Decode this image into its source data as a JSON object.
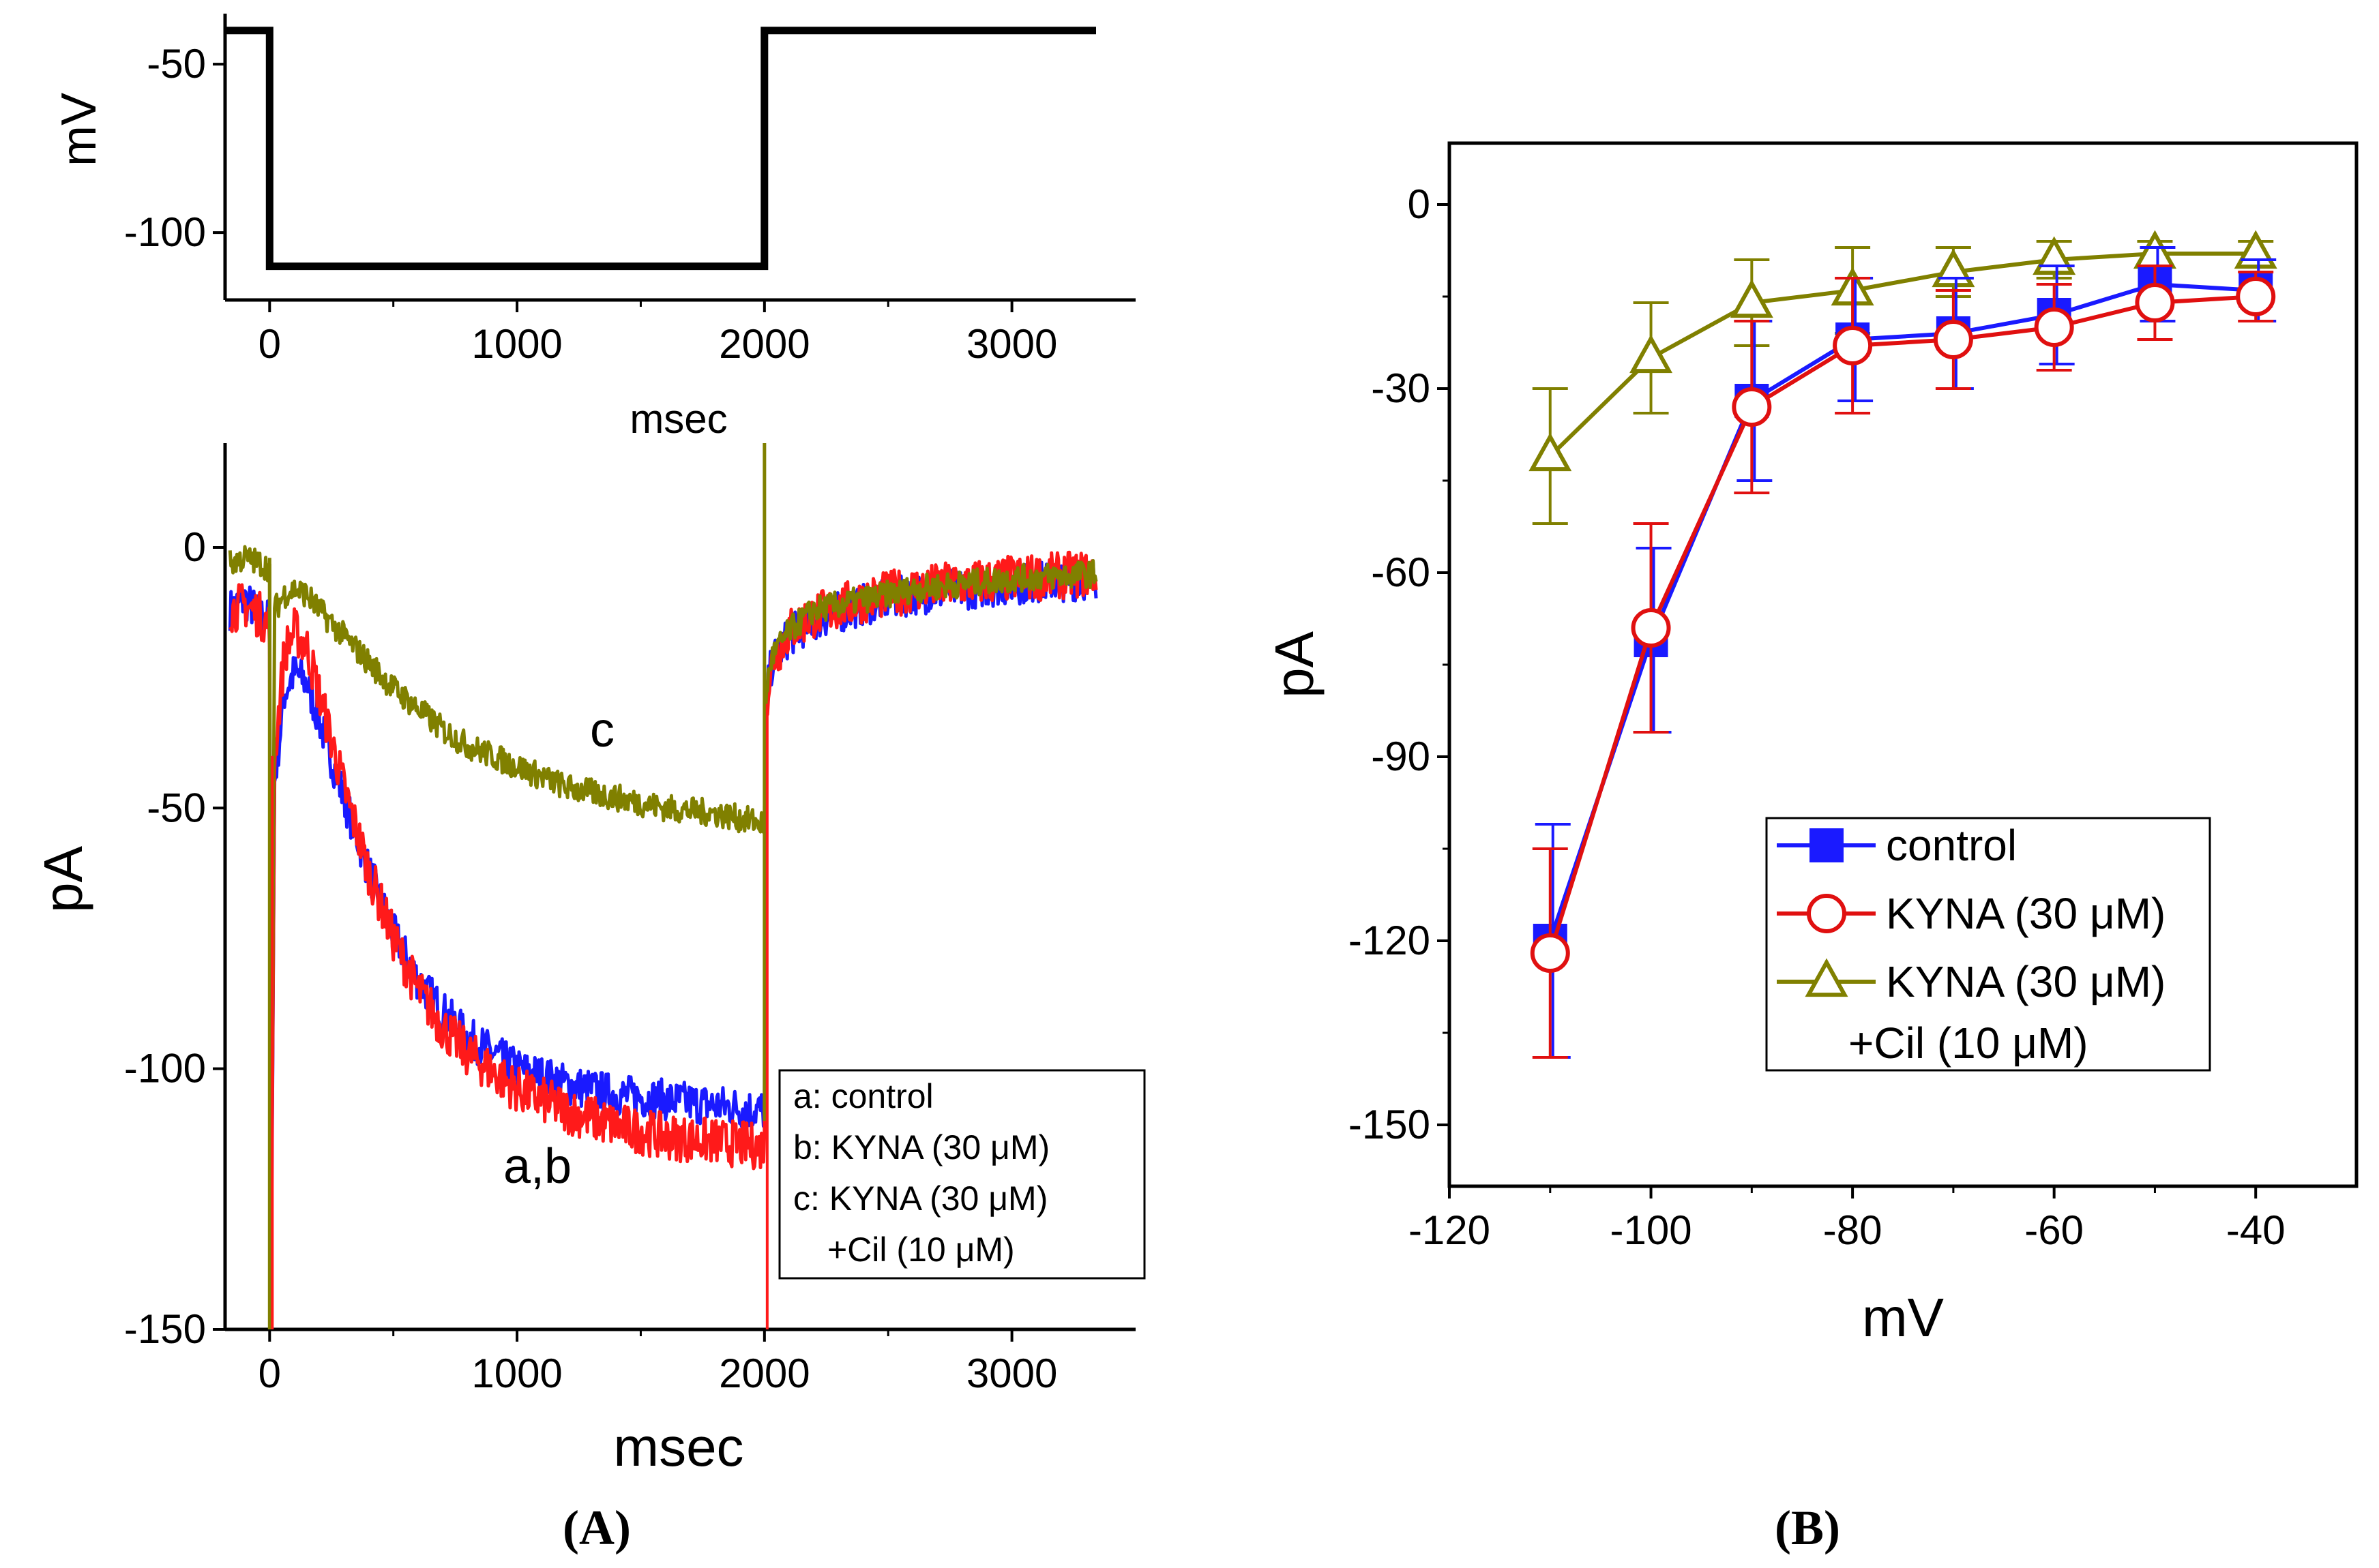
{
  "panel_labels": {
    "a": "(A)",
    "b": "(B)"
  },
  "chart_data": [
    {
      "id": "voltage_protocol",
      "type": "line",
      "xlabel": "msec",
      "ylabel": "mV",
      "xlim": [
        -180,
        3500
      ],
      "ylim": [
        -120,
        -35
      ],
      "xticks": [
        0,
        1000,
        2000,
        3000
      ],
      "yticks": [
        -50,
        -100
      ],
      "series": [
        {
          "name": "command voltage",
          "color": "#000000",
          "x": [
            -180,
            0,
            0,
            2000,
            2000,
            3340
          ],
          "y": [
            -40,
            -40,
            -110,
            -110,
            -40,
            -40
          ]
        }
      ]
    },
    {
      "id": "current_traces",
      "type": "line",
      "xlabel": "msec",
      "ylabel": "pA",
      "xlim": [
        -180,
        3500
      ],
      "ylim": [
        -150,
        20
      ],
      "xticks": [
        0,
        1000,
        2000,
        3000
      ],
      "yticks": [
        0,
        -50,
        -100,
        -150
      ],
      "annotations": [
        "c",
        "a,b"
      ],
      "legend": [
        "a: control",
        "b: KYNA (30 μM)",
        "c: KYNA (30 μM)",
        "+Cil (10 μM)"
      ],
      "series": [
        {
          "name": "a: control",
          "color": "#1a1aff",
          "x": [
            -160,
            -100,
            -40,
            0,
            5,
            20,
            60,
            100,
            150,
            200,
            300,
            400,
            500,
            600,
            700,
            800,
            1000,
            1200,
            1400,
            1600,
            1800,
            2000,
            2005,
            2030,
            2100,
            2200,
            2400,
            2600,
            2800,
            3000,
            3340
          ],
          "y": [
            -12,
            -10,
            -13,
            -14,
            -145,
            -45,
            -28,
            -24,
            -26,
            -33,
            -48,
            -62,
            -74,
            -83,
            -89,
            -94,
            -100,
            -103,
            -105,
            -106,
            -107,
            -108,
            -30,
            -22,
            -17,
            -14,
            -11,
            -9,
            -8,
            -7,
            -6
          ]
        },
        {
          "name": "b: KYNA (30 μM)",
          "color": "#ff1a1a",
          "x": [
            -160,
            -100,
            -40,
            0,
            5,
            20,
            60,
            100,
            150,
            200,
            300,
            400,
            500,
            600,
            700,
            800,
            1000,
            1200,
            1400,
            1600,
            1800,
            2000,
            2005,
            2030,
            2100,
            2200,
            2400,
            2600,
            2800,
            3000,
            3340
          ],
          "y": [
            -12,
            -11,
            -13,
            -15,
            -148,
            -40,
            -20,
            -16,
            -19,
            -28,
            -46,
            -62,
            -75,
            -85,
            -92,
            -97,
            -104,
            -108,
            -111,
            -113,
            -114,
            -115,
            -30,
            -22,
            -16,
            -13,
            -10,
            -8,
            -7,
            -6,
            -5
          ]
        },
        {
          "name": "c: KYNA (30 μM) +Cil (10 μM)",
          "color": "#808000",
          "x": [
            -160,
            -100,
            -40,
            0,
            5,
            20,
            60,
            100,
            150,
            200,
            300,
            400,
            500,
            600,
            700,
            800,
            1000,
            1200,
            1400,
            1600,
            1800,
            2000,
            2005,
            2030,
            2100,
            2200,
            2400,
            2600,
            2800,
            3000,
            3340
          ],
          "y": [
            -3,
            -2,
            -3,
            -4,
            -148,
            -12,
            -9,
            -8,
            -9,
            -12,
            -17,
            -22,
            -27,
            -31,
            -35,
            -38,
            -42,
            -46,
            -48,
            -50,
            -51,
            -53,
            -28,
            -21,
            -16,
            -12,
            -10,
            -8,
            -7,
            -6,
            -5
          ]
        }
      ]
    },
    {
      "id": "iv_curve",
      "type": "line",
      "xlabel": "mV",
      "ylabel": "pA",
      "xlim": [
        -120,
        -30
      ],
      "ylim": [
        -160,
        10
      ],
      "xticks": [
        -120,
        -100,
        -80,
        -60,
        -40
      ],
      "yticks": [
        0,
        -30,
        -60,
        -90,
        -120,
        -150
      ],
      "x": [
        -110,
        -100,
        -90,
        -80,
        -70,
        -60,
        -50,
        -40
      ],
      "series": [
        {
          "name": "control",
          "color": "#1a1aff",
          "marker": "square",
          "values": [
            -120,
            -71,
            -32,
            -22,
            -21,
            -18,
            -13,
            -14
          ],
          "errors": [
            19,
            15,
            13,
            10,
            9,
            8,
            6,
            5
          ]
        },
        {
          "name": "KYNA (30 μM)",
          "color": "#e01010",
          "marker": "circle-open",
          "values": [
            -122,
            -69,
            -33,
            -23,
            -22,
            -20,
            -16,
            -15
          ],
          "errors": [
            17,
            17,
            14,
            11,
            8,
            7,
            6,
            4
          ]
        },
        {
          "name": "KYNA (30 μM)",
          "legend_line2": "+Cil (10 μM)",
          "color": "#808000",
          "marker": "triangle-open",
          "values": [
            -41,
            -25,
            -16,
            -14,
            -11,
            -9,
            -8,
            -8
          ],
          "errors": [
            11,
            9,
            7,
            7,
            4,
            3,
            2,
            2
          ]
        }
      ]
    }
  ]
}
